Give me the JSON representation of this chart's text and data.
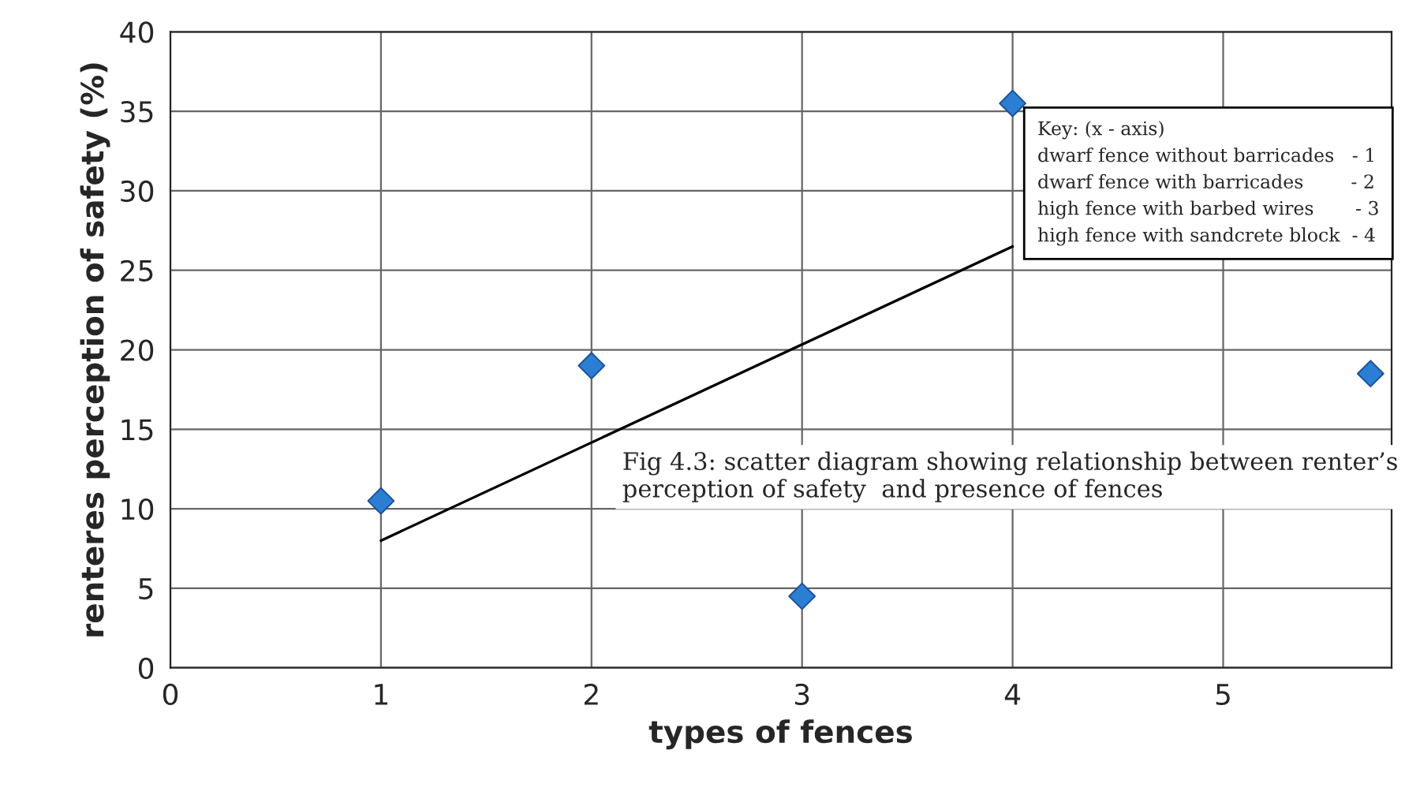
{
  "chart_data": {
    "type": "scatter",
    "xlabel": "types of fences",
    "ylabel": "renteres perception of safety (%)",
    "xlim": [
      0,
      5.8
    ],
    "ylim": [
      0,
      40
    ],
    "xticks": [
      0,
      1,
      2,
      3,
      4,
      5
    ],
    "yticks": [
      0,
      5,
      10,
      15,
      20,
      25,
      30,
      35,
      40
    ],
    "grid": true,
    "series": [
      {
        "marker": "diamond",
        "color": "#2a7fd4",
        "x": [
          1,
          2,
          3,
          4,
          5.7
        ],
        "values": [
          10.5,
          19,
          4.5,
          35.5,
          18.5
        ]
      },
      {
        "type": "line",
        "color": "#000000",
        "x": [
          1,
          4
        ],
        "values": [
          8,
          26.5
        ]
      }
    ],
    "annotations": [
      "Key: (x - axis)",
      "dwarf fence without barricades   - 1",
      "dwarf fence with barricades        - 2",
      "high fence with barbed wires       - 3",
      "high fence with sandcrete block  - 4",
      "Fig 4.3: scatter diagram showing relationship between renter’s\nperception of safety  and presence of fences"
    ]
  }
}
